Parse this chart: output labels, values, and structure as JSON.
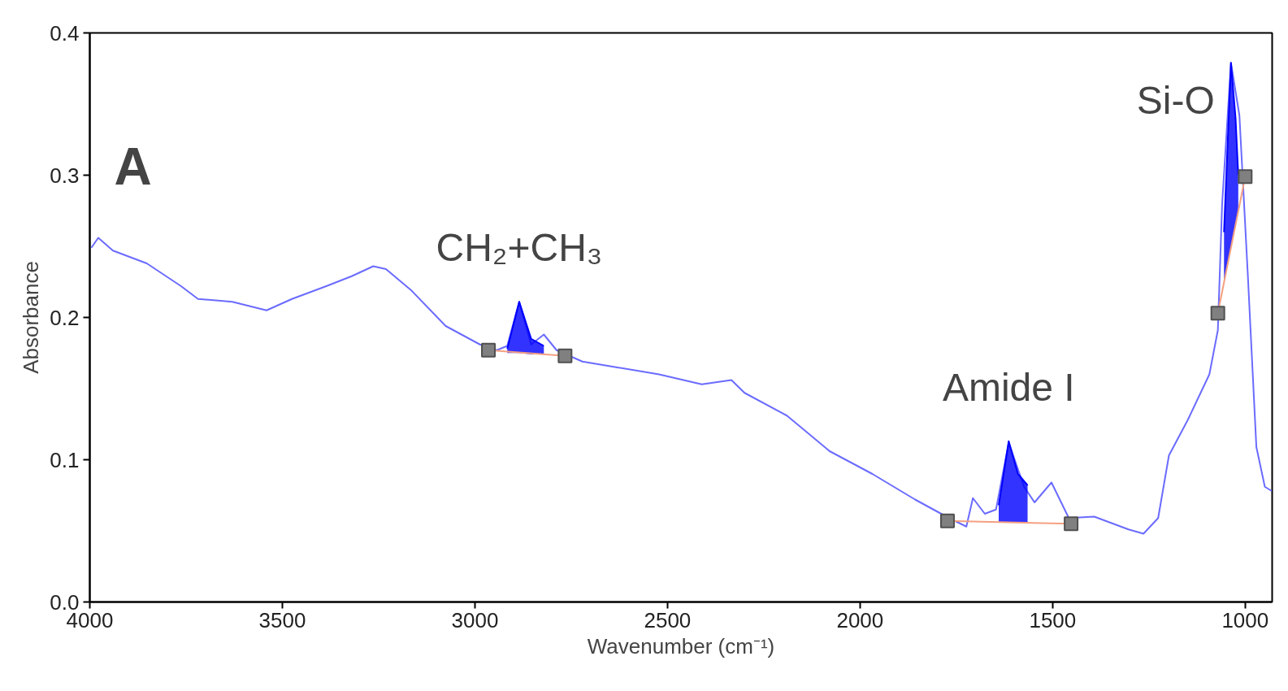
{
  "chart_data": {
    "type": "line",
    "xlabel": "Wavenumber (cm⁻¹)",
    "ylabel": "Absorbance",
    "xlim": [
      4000,
      930
    ],
    "ylim": [
      0,
      0.4
    ],
    "xticks": [
      4000,
      3500,
      3000,
      2500,
      2000,
      1500,
      1000
    ],
    "yticks": [
      {
        "value": 0,
        "label": "0.0"
      },
      {
        "value": 0.1,
        "label": "0.1"
      },
      {
        "value": 0.2,
        "label": "0.2"
      },
      {
        "value": 0.3,
        "label": "0.3"
      },
      {
        "value": 0.4,
        "label": "0.4"
      }
    ],
    "grid": false,
    "marker": "none",
    "line_style": "solid",
    "annotations": [
      "A",
      {
        "text": "CH₂+CH₃",
        "x": 2885,
        "y": 0.211
      },
      {
        "text": "Amide I",
        "x": 1614,
        "y": 0.113
      },
      {
        "text": "Si-O",
        "x": 1037,
        "y": 0.379
      }
    ],
    "series": [
      {
        "type": "line",
        "color": "#6b6bff",
        "x": [
          3996,
          3978,
          3940,
          3852,
          3763,
          3719,
          3630,
          3541,
          3475,
          3386,
          3320,
          3264,
          3231,
          3165,
          3076,
          2987,
          2943,
          2916,
          2885,
          2854,
          2821,
          2788,
          2721,
          2633,
          2522,
          2411,
          2334,
          2300,
          2190,
          2079,
          1968,
          1857,
          1769,
          1724,
          1707,
          1676,
          1647,
          1614,
          1574,
          1547,
          1503,
          1458,
          1392,
          1303,
          1264,
          1226,
          1198,
          1149,
          1093,
          1071,
          1060,
          1037,
          1015,
          993,
          971,
          949,
          931
        ],
        "values": [
          0.249,
          0.256,
          0.247,
          0.238,
          0.222,
          0.213,
          0.211,
          0.205,
          0.213,
          0.222,
          0.229,
          0.236,
          0.234,
          0.219,
          0.194,
          0.181,
          0.177,
          0.18,
          0.211,
          0.181,
          0.188,
          0.177,
          0.169,
          0.165,
          0.16,
          0.153,
          0.156,
          0.147,
          0.131,
          0.106,
          0.09,
          0.072,
          0.059,
          0.053,
          0.073,
          0.062,
          0.065,
          0.112,
          0.081,
          0.07,
          0.084,
          0.059,
          0.06,
          0.051,
          0.048,
          0.059,
          0.103,
          0.128,
          0.16,
          0.191,
          0.279,
          0.379,
          0.342,
          0.229,
          0.109,
          0.081,
          0.078
        ]
      },
      {
        "type": "line",
        "color": "#0000ff",
        "x": [
          2916,
          2885,
          2854,
          2821
        ],
        "values": [
          0.178,
          0.211,
          0.185,
          0.18
        ],
        "upper": [
          0.178,
          0.211,
          0.185,
          0.18
        ],
        "lower": [
          0.175,
          0.175,
          0.174,
          0.174
        ]
      },
      {
        "type": "line",
        "color": "#0000ff",
        "x": [
          1640,
          1614,
          1590,
          1565
        ],
        "values": [
          0.068,
          0.113,
          0.09,
          0.082
        ],
        "upper": [
          0.068,
          0.113,
          0.09,
          0.082
        ],
        "lower": [
          0.056,
          0.056,
          0.056,
          0.056
        ]
      },
      {
        "type": "line",
        "color": "#0000ff",
        "x": [
          1055,
          1037,
          1025,
          1018
        ],
        "values": [
          0.26,
          0.379,
          0.34,
          0.3
        ],
        "upper": [
          0.26,
          0.379,
          0.34,
          0.3
        ],
        "lower": [
          0.225,
          0.249,
          0.265,
          0.275
        ]
      },
      {
        "type": "line",
        "color": "#f4a080",
        "marker": "square",
        "x": [
          2965,
          2766
        ],
        "values": [
          0.177,
          0.173
        ]
      },
      {
        "type": "line",
        "color": "#f4a080",
        "marker": "square",
        "x": [
          1773,
          1452
        ],
        "values": [
          0.057,
          0.055
        ]
      },
      {
        "type": "line",
        "color": "#f4a080",
        "marker": "square",
        "x": [
          1071,
          1000
        ],
        "values": [
          0.203,
          0.299
        ]
      }
    ]
  }
}
